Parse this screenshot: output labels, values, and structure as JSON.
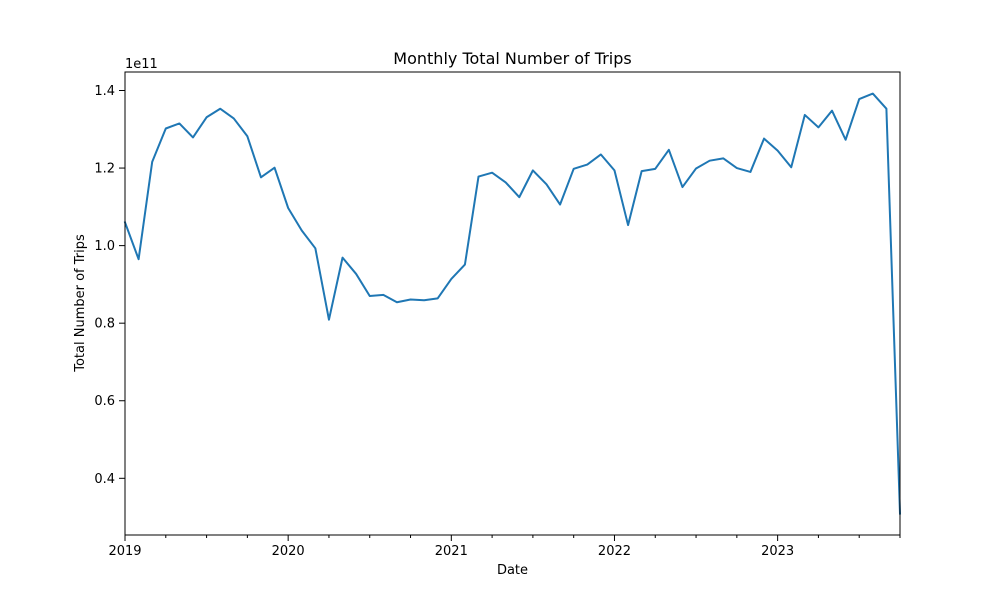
{
  "chart_data": {
    "type": "line",
    "title": "Monthly Total Number of Trips",
    "xlabel": "Date",
    "ylabel": "Total Number of Trips",
    "y_offset_label": "1e11",
    "y_multiplier": 100000000000,
    "x_start": "2019-01",
    "xlim": [
      "2019-01",
      "2023-10"
    ],
    "ylim": [
      0.2538,
      1.4477
    ],
    "x_ticks": [
      {
        "date": "2019-01",
        "label": "2019"
      },
      {
        "date": "2020-01",
        "label": "2020"
      },
      {
        "date": "2021-01",
        "label": "2021"
      },
      {
        "date": "2022-01",
        "label": "2022"
      },
      {
        "date": "2023-01",
        "label": "2023"
      }
    ],
    "y_ticks": [
      {
        "value": 0.4,
        "label": "0.4"
      },
      {
        "value": 0.6,
        "label": "0.6"
      },
      {
        "value": 0.8,
        "label": "0.8"
      },
      {
        "value": 1.0,
        "label": "1.0"
      },
      {
        "value": 1.2,
        "label": "1.2"
      },
      {
        "value": 1.4,
        "label": "1.4"
      }
    ],
    "grid": false,
    "color": "#1f77b4",
    "series": [
      {
        "x": [
          "2019-01",
          "2019-02",
          "2019-03",
          "2019-04",
          "2019-05",
          "2019-06",
          "2019-07",
          "2019-08",
          "2019-09",
          "2019-10",
          "2019-11",
          "2019-12",
          "2020-01",
          "2020-02",
          "2020-03",
          "2020-04",
          "2020-05",
          "2020-06",
          "2020-07",
          "2020-08",
          "2020-09",
          "2020-10",
          "2020-11",
          "2020-12",
          "2021-01",
          "2021-02",
          "2021-03",
          "2021-04",
          "2021-05",
          "2021-06",
          "2021-07",
          "2021-08",
          "2021-09",
          "2021-10",
          "2021-11",
          "2021-12",
          "2022-01",
          "2022-02",
          "2022-03",
          "2022-04",
          "2022-05",
          "2022-06",
          "2022-07",
          "2022-08",
          "2022-09",
          "2022-10",
          "2022-11",
          "2022-12",
          "2023-01",
          "2023-02",
          "2023-03",
          "2023-04",
          "2023-05",
          "2023-06",
          "2023-07",
          "2023-08",
          "2023-09",
          "2023-10"
        ],
        "values": [
          1.06,
          0.965,
          1.216,
          1.302,
          1.315,
          1.279,
          1.331,
          1.353,
          1.328,
          1.282,
          1.176,
          1.201,
          1.097,
          1.039,
          0.993,
          0.809,
          0.969,
          0.927,
          0.87,
          0.873,
          0.854,
          0.861,
          0.859,
          0.864,
          0.914,
          0.951,
          1.178,
          1.188,
          1.163,
          1.125,
          1.194,
          1.158,
          1.106,
          1.198,
          1.209,
          1.235,
          1.194,
          1.053,
          1.192,
          1.198,
          1.247,
          1.151,
          1.199,
          1.219,
          1.225,
          1.2,
          1.19,
          1.276,
          1.245,
          1.202,
          1.337,
          1.305,
          1.348,
          1.273,
          1.378,
          1.392,
          1.353,
          0.309
        ]
      }
    ]
  }
}
